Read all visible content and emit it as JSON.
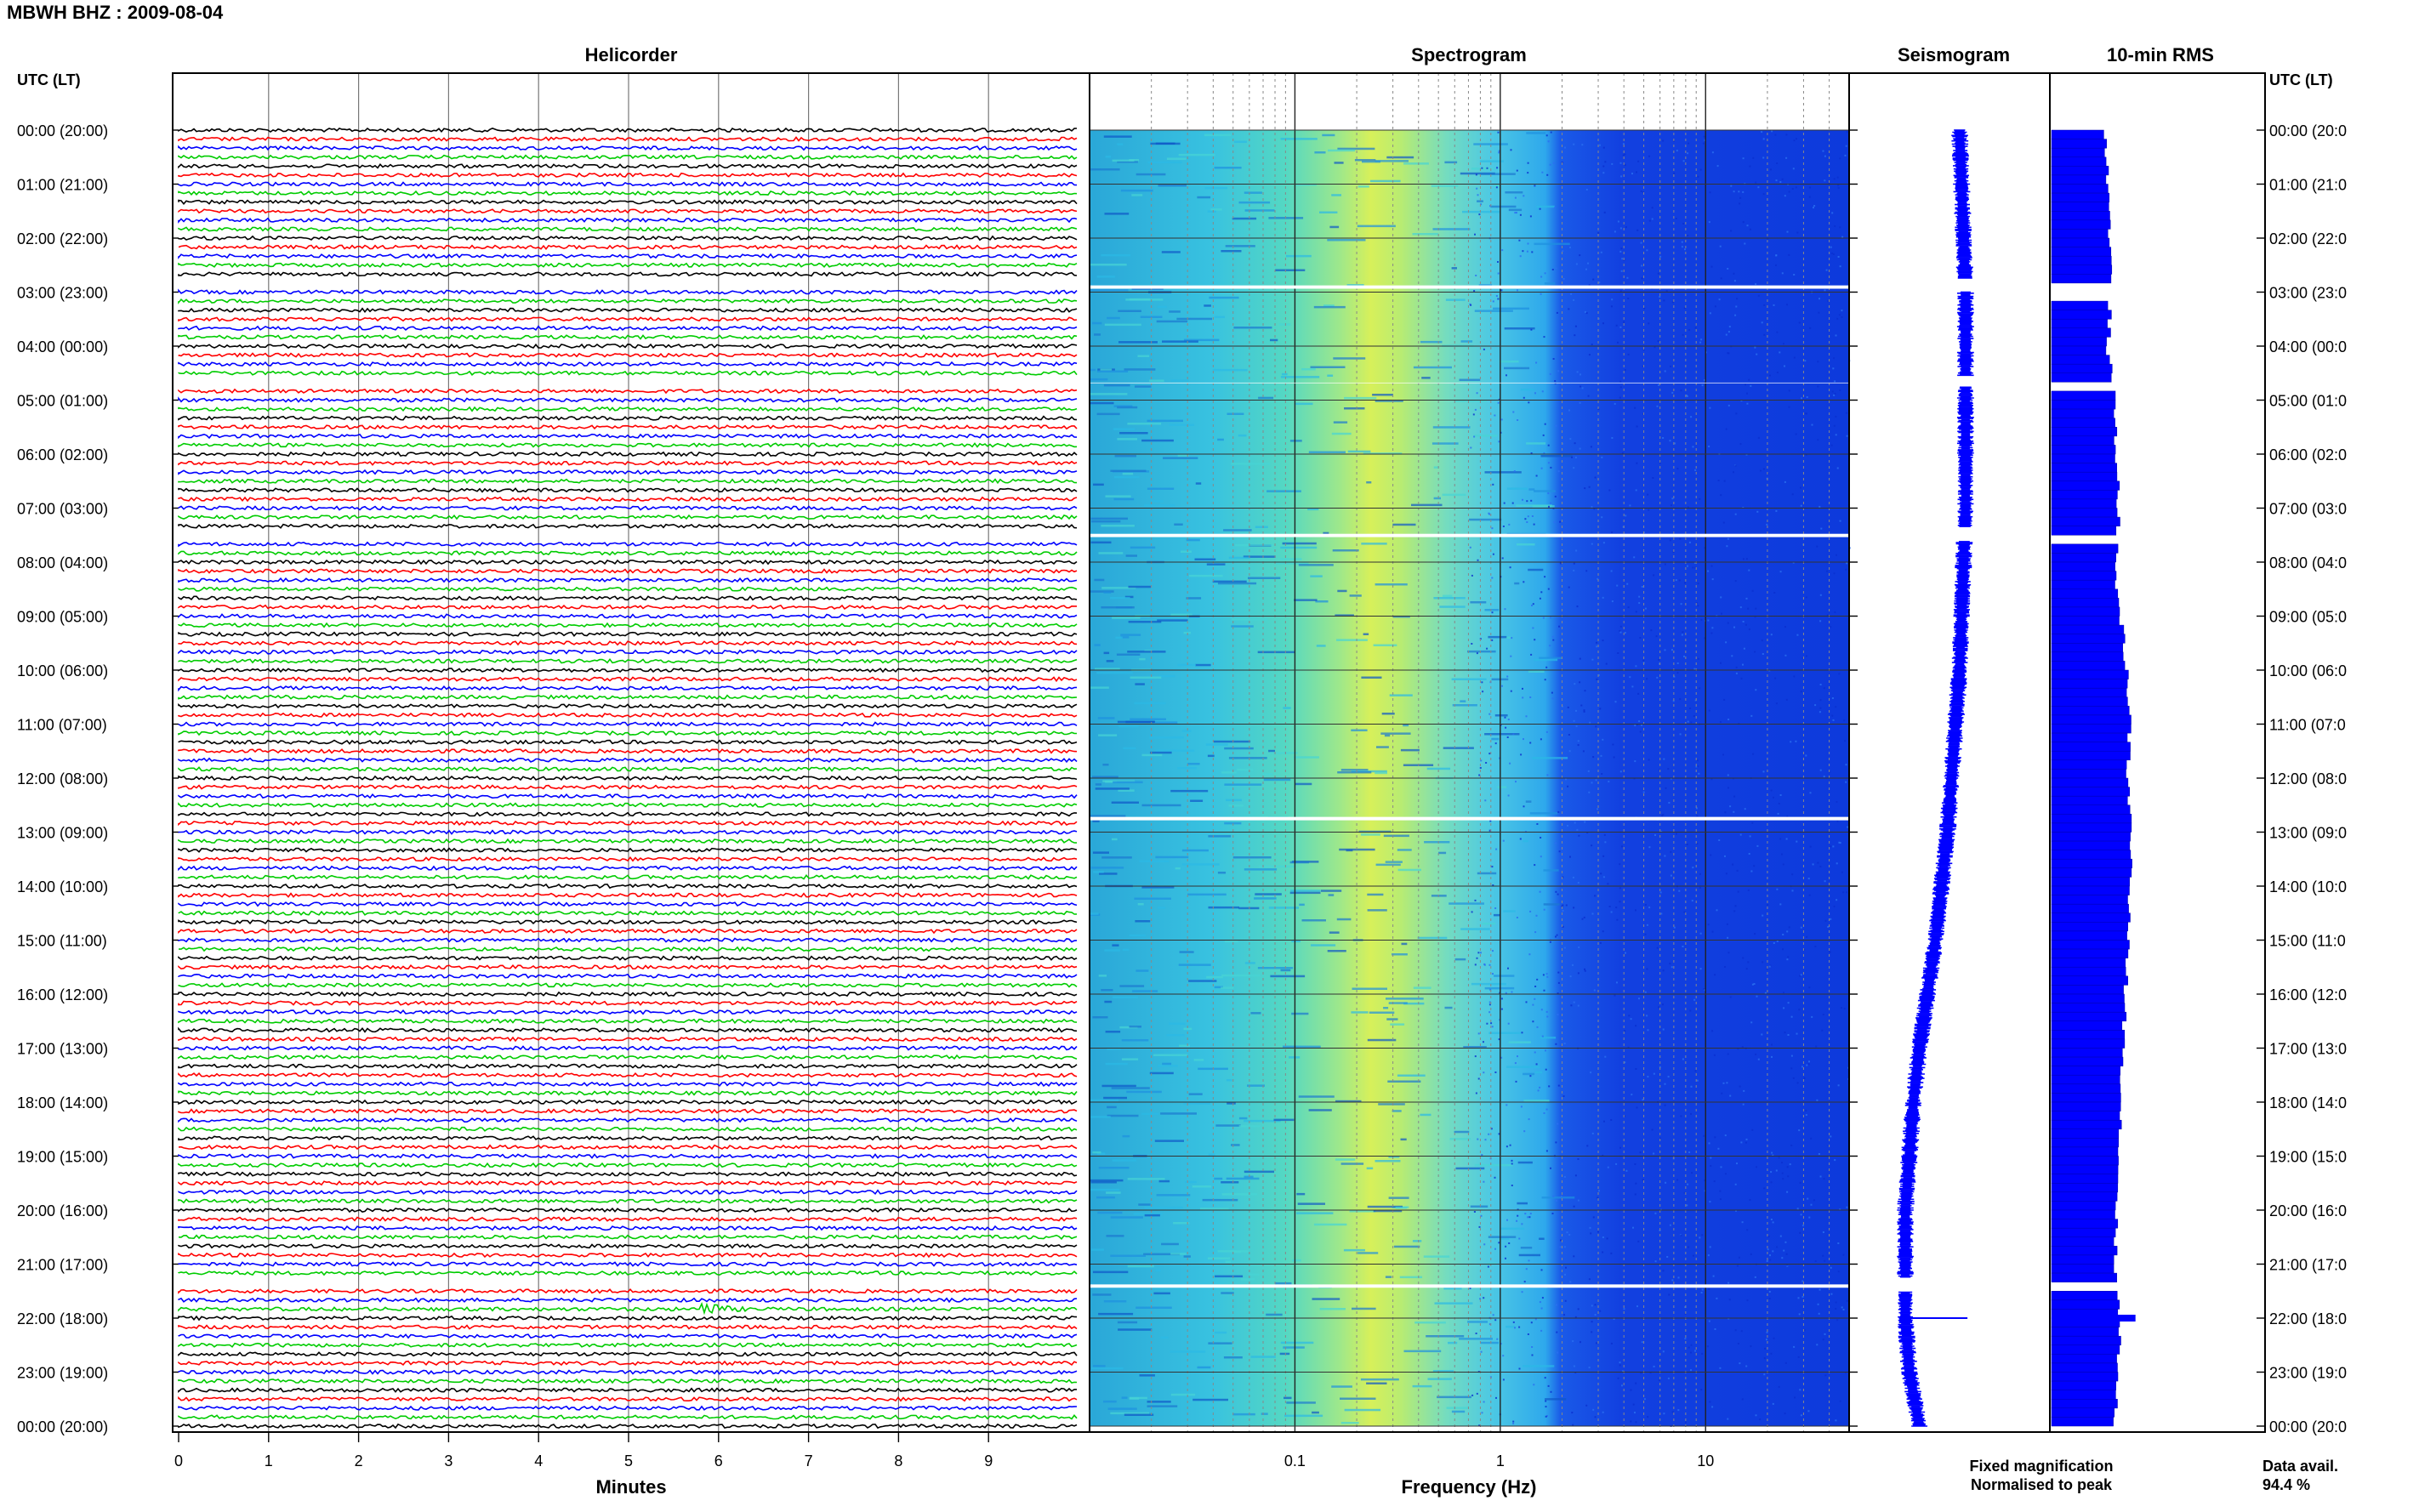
{
  "header": {
    "title": "MBWH BHZ : 2009-08-04"
  },
  "panels": {
    "helicorder": "Helicorder",
    "spectrogram": "Spectrogram",
    "seismogram": "Seismogram",
    "rms": "10-min RMS"
  },
  "axis_labels": {
    "left_time": "UTC (LT)",
    "right_time": "UTC (LT)",
    "helicorder_x": "Minutes",
    "spectrogram_x": "Frequency (Hz)"
  },
  "legend": {
    "fixed": "Fixed magnification",
    "normalised": "Normalised to peak",
    "fixed_color": "#0000ff",
    "normalised_color": "#ff0000"
  },
  "availability": {
    "label": "Data avail.",
    "value": "94.4 %"
  },
  "colors": {
    "trace_cycle": [
      "#000000",
      "#ff0000",
      "#0000ff",
      "#00cc00"
    ],
    "seismogram": "#0000ff",
    "rms": "#0000ff"
  },
  "chart_data": {
    "type": "helicorder",
    "time_labels": [
      "00:00 (20:00)",
      "01:00 (21:00)",
      "02:00 (22:00)",
      "03:00 (23:00)",
      "04:00 (00:00)",
      "05:00 (01:00)",
      "06:00 (02:00)",
      "07:00 (03:00)",
      "08:00 (04:00)",
      "09:00 (05:00)",
      "10:00 (06:00)",
      "11:00 (07:00)",
      "12:00 (08:00)",
      "13:00 (09:00)",
      "14:00 (10:00)",
      "15:00 (11:00)",
      "16:00 (12:00)",
      "17:00 (13:00)",
      "18:00 (14:00)",
      "19:00 (15:00)",
      "20:00 (16:00)",
      "21:00 (17:00)",
      "22:00 (18:00)",
      "23:00 (19:00)",
      "00:00 (20:00)"
    ],
    "right_time_labels": [
      "00:00 (20:0",
      "01:00 (21:0",
      "02:00 (22:0",
      "03:00 (23:0",
      "04:00 (00:0",
      "05:00 (01:0",
      "06:00 (02:0",
      "07:00 (03:0",
      "08:00 (04:0",
      "09:00 (05:0",
      "10:00 (06:0",
      "11:00 (07:0",
      "12:00 (08:0",
      "13:00 (09:0",
      "14:00 (10:0",
      "15:00 (11:0",
      "16:00 (12:0",
      "17:00 (13:0",
      "18:00 (14:0",
      "19:00 (15:0",
      "20:00 (16:0",
      "21:00 (17:0",
      "22:00 (18:0",
      "23:00 (19:0",
      "00:00 (20:0"
    ],
    "helicorder": {
      "x_ticks": [
        "0",
        "1",
        "2",
        "3",
        "4",
        "5",
        "6",
        "7",
        "8",
        "9"
      ],
      "xlim_minutes": [
        0,
        10
      ],
      "lines_per_hour": 6,
      "hours": 24,
      "gaps_hours": [
        [
          2.75,
          3.0
        ],
        [
          4.55,
          4.75
        ],
        [
          7.35,
          7.6
        ],
        [
          21.25,
          21.5
        ]
      ],
      "events": [
        {
          "hour": 21.9,
          "minute": 5.8,
          "label": ""
        }
      ]
    },
    "spectrogram": {
      "x_scale": "log",
      "x_ticks": [
        "0.1",
        "1",
        "10"
      ],
      "xlim_hz": [
        0.01,
        50
      ],
      "peak_hz": 0.4,
      "bright_line_hour": 12.75
    },
    "seismogram": {
      "offsets": [
        0.55,
        0.56,
        0.57,
        0.58,
        0.58,
        0.58,
        0.58,
        0.58,
        0.57,
        0.56,
        0.55,
        0.53,
        0.51,
        0.49,
        0.46,
        0.43,
        0.39,
        0.35,
        0.32,
        0.3,
        0.28,
        0.28,
        0.28,
        0.3,
        0.35
      ],
      "spike_hour": 22.0
    },
    "rms": {
      "values": [
        0.26,
        0.27,
        0.28,
        0.28,
        0.27,
        0.3,
        0.31,
        0.32,
        0.3,
        0.33,
        0.36,
        0.37,
        0.36,
        0.38,
        0.37,
        0.36,
        0.35,
        0.34,
        0.33,
        0.32,
        0.31,
        0.3,
        0.33,
        0.31,
        0.3
      ],
      "spike_hour": 22.0
    }
  }
}
